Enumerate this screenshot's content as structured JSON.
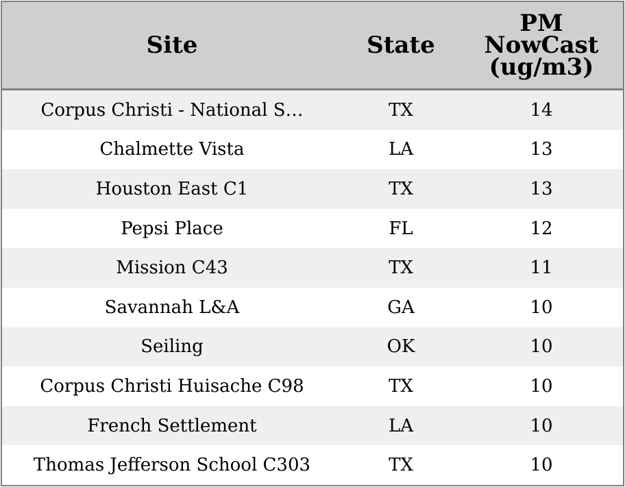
{
  "chart_data": {
    "type": "table",
    "columns": [
      "Site",
      "State",
      "PM NowCast (ug/m3)"
    ],
    "column_header_lines": [
      [
        "Site"
      ],
      [
        "State"
      ],
      [
        "PM",
        "NowCast",
        "(ug/m3)"
      ]
    ],
    "rows": [
      {
        "site": "Corpus Christi - National S…",
        "state": "TX",
        "pm": "14"
      },
      {
        "site": "Chalmette Vista",
        "state": "LA",
        "pm": "13"
      },
      {
        "site": "Houston East C1",
        "state": "TX",
        "pm": "13"
      },
      {
        "site": "Pepsi Place",
        "state": "FL",
        "pm": "12"
      },
      {
        "site": "Mission C43",
        "state": "TX",
        "pm": "11"
      },
      {
        "site": "Savannah L&A",
        "state": "GA",
        "pm": "10"
      },
      {
        "site": "Seiling",
        "state": "OK",
        "pm": "10"
      },
      {
        "site": "Corpus Christi Huisache C98",
        "state": "TX",
        "pm": "10"
      },
      {
        "site": "French Settlement",
        "state": "LA",
        "pm": "10"
      },
      {
        "site": "Thomas Jefferson School C303",
        "state": "TX",
        "pm": "10"
      }
    ],
    "colors": {
      "header_background": "#cfcfcf",
      "border": "#808080",
      "row_stripe": "#efefef",
      "row_plain": "#ffffff"
    }
  }
}
